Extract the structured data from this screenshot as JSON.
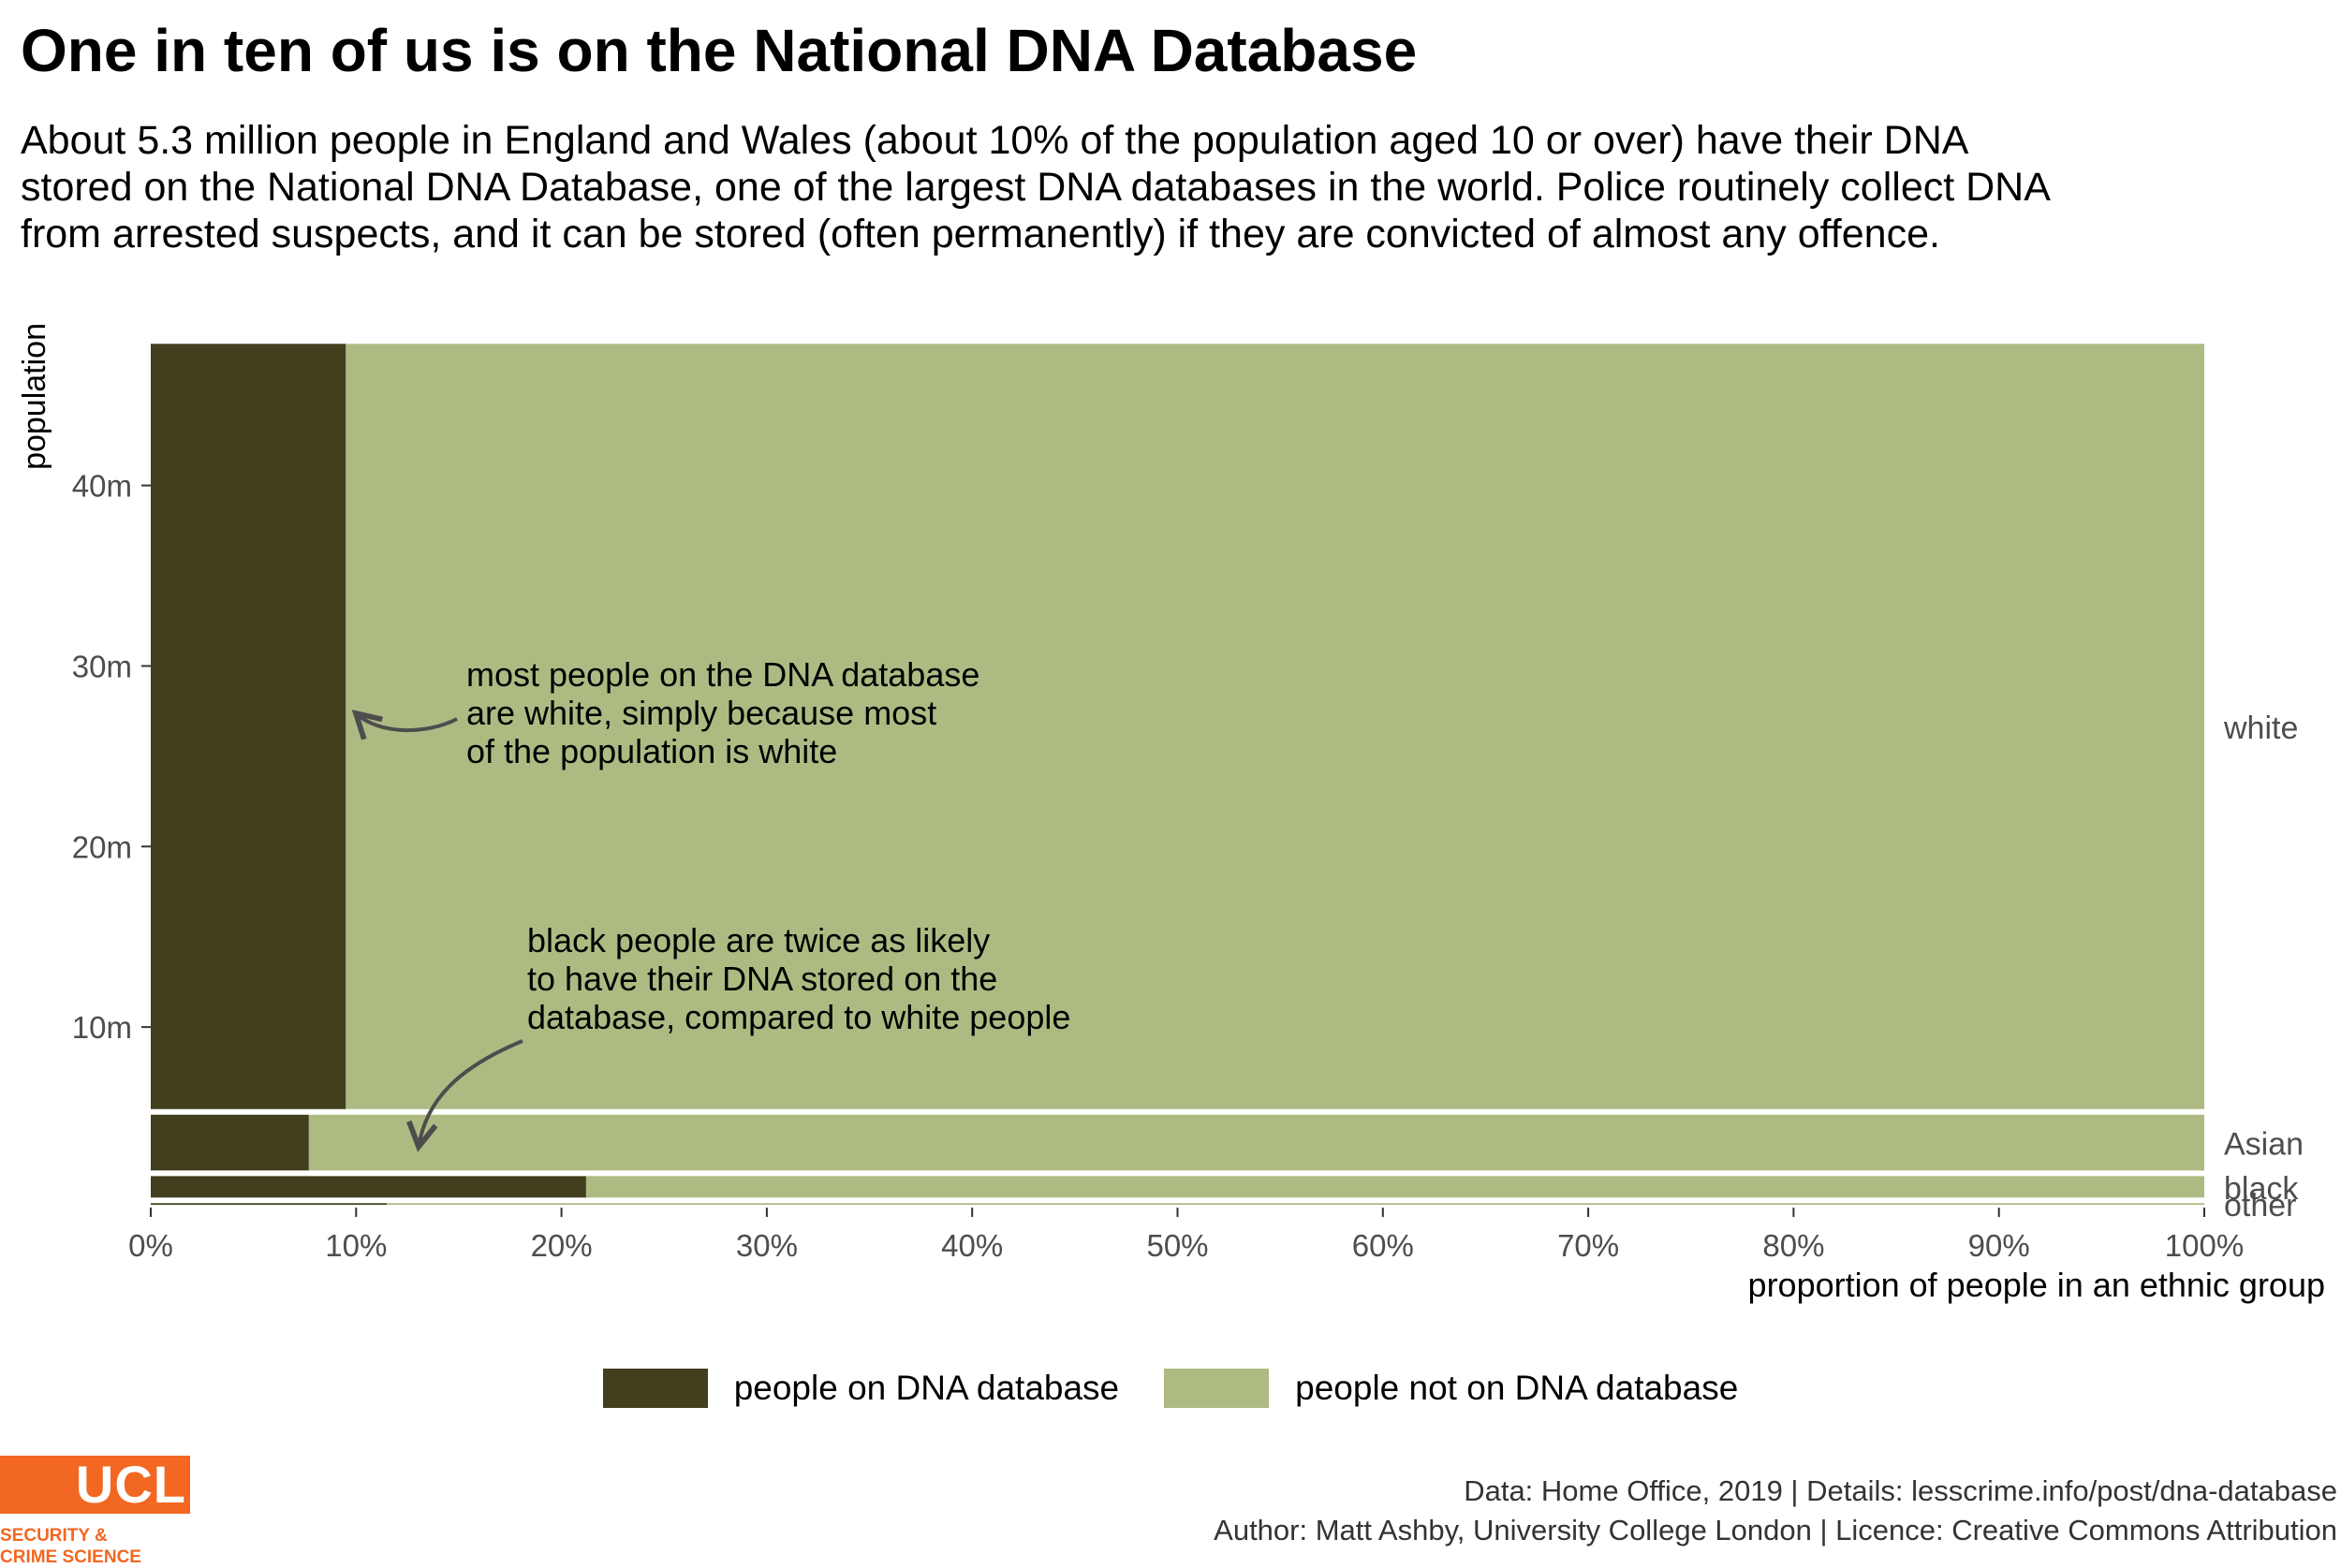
{
  "title": "One in ten of us is on the National DNA Database",
  "subtitle": "About 5.3 million people in England and Wales (about 10% of the population aged 10 or over) have their DNA stored on the National DNA Database, one of the largest DNA databases in the world. Police routinely collect DNA from arrested suspects, and it can be stored (often permanently) if they are convicted of almost any offence.",
  "chart_data": {
    "type": "mosaic",
    "ylabel": "population",
    "xlabel": "proportion of people in an ethnic group",
    "xlim": [
      0,
      1
    ],
    "ylim": [
      0,
      49
    ],
    "x_ticks": [
      "0%",
      "10%",
      "20%",
      "30%",
      "40%",
      "50%",
      "60%",
      "70%",
      "80%",
      "90%",
      "100%"
    ],
    "y_ticks": [
      {
        "value": 10,
        "label": "10m"
      },
      {
        "value": 20,
        "label": "20m"
      },
      {
        "value": 30,
        "label": "30m"
      },
      {
        "value": 40,
        "label": "40m"
      }
    ],
    "groups": [
      {
        "label": "white",
        "population": 42.7,
        "on_database": 0.095
      },
      {
        "label": "Asian",
        "population": 3.4,
        "on_database": 0.077
      },
      {
        "label": "black",
        "population": 1.5,
        "on_database": 0.212
      },
      {
        "label": "other",
        "population": 0.4,
        "on_database": 0.115
      }
    ],
    "series": [
      {
        "name": "people on DNA database",
        "color": "#423F1F"
      },
      {
        "name": "people not on DNA database",
        "color": "#ADBB83"
      }
    ],
    "annotations": [
      {
        "lines": [
          "most people on the DNA database",
          "are white, simply because most",
          "of the population is white"
        ]
      },
      {
        "lines": [
          "black people are twice as likely",
          "to have their DNA stored on the",
          "database, compared to white people"
        ]
      }
    ]
  },
  "legend": {
    "items": [
      {
        "label": "people on DNA database",
        "color": "#423F1F"
      },
      {
        "label": "people not on DNA database",
        "color": "#ADBB83"
      }
    ]
  },
  "caption": {
    "line1": "Data: Home Office, 2019 |  Details: lesscrime.info/post/dna-database",
    "line2": "Author: Matt Ashby, University College London |  Licence: Creative Commons Attribution"
  },
  "logo": {
    "mark": "UCL",
    "line1": "SECURITY &",
    "line2": "CRIME SCIENCE",
    "color": "#F26722"
  }
}
